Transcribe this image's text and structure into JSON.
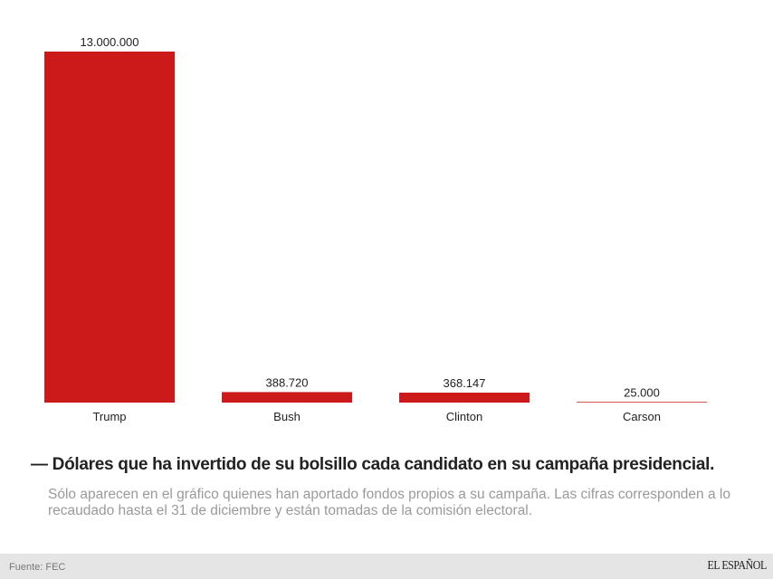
{
  "chart_data": {
    "type": "bar",
    "categories": [
      "Trump",
      "Bush",
      "Clinton",
      "Carson"
    ],
    "values": [
      13000000,
      388720,
      368147,
      25000
    ],
    "value_labels": [
      "13.000.000",
      "388.720",
      "368.147",
      "25.000"
    ],
    "ylim": [
      0,
      13000000
    ],
    "grid": false,
    "bar_color": "#cc1a1a"
  },
  "title": "— Dólares que ha invertido de su bolsillo cada candidato en su campaña presidencial.",
  "subtitle": "Sólo aparecen en el gráfico quienes han aportado fondos propios a su campaña. Las cifras corresponden a lo recaudado hasta el 31 de diciembre y están tomadas de la comisión electoral.",
  "footer": {
    "source": "Fuente: FEC",
    "logo": "EL ESPAÑOL"
  }
}
